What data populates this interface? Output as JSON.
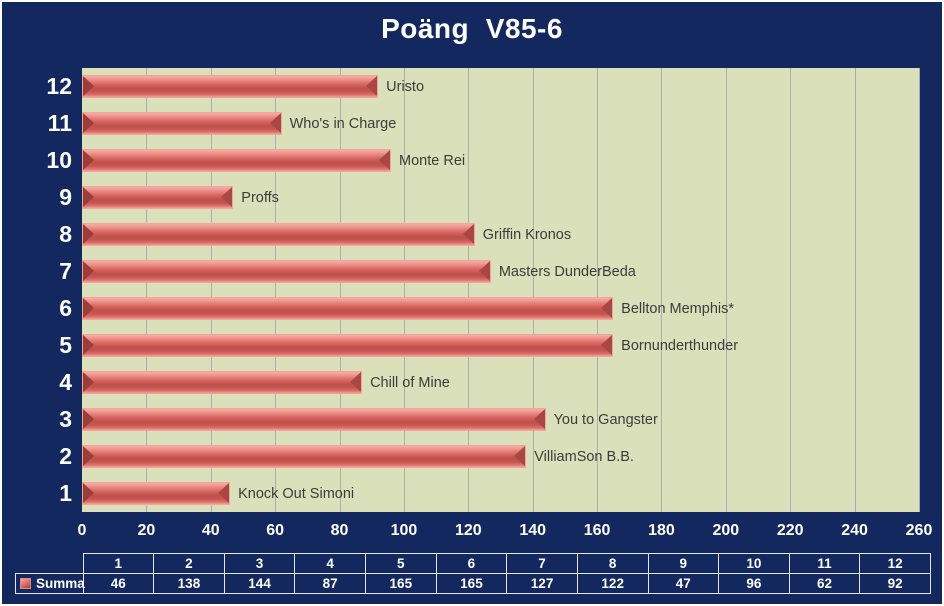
{
  "title": "Poäng  V85-6",
  "chart_data": {
    "type": "bar",
    "orientation": "horizontal",
    "title": "Poäng  V85-6",
    "series_name": "Summa",
    "categories": [
      "1",
      "2",
      "3",
      "4",
      "5",
      "6",
      "7",
      "8",
      "9",
      "10",
      "11",
      "12"
    ],
    "values": [
      46,
      138,
      144,
      87,
      165,
      165,
      127,
      122,
      47,
      96,
      62,
      92
    ],
    "bar_labels": [
      "Knock Out Simoni",
      "VilliamSon B.B.",
      "You to Gangster",
      "Chill of Mine",
      "Bornunderthunder",
      "Bellton Memphis*",
      "Masters DunderBeda",
      "Griffin Kronos",
      "Proffs",
      "Monte Rei",
      "Who's in Charge",
      "Uristo"
    ],
    "display_order_top_to_bottom": [
      "12",
      "11",
      "10",
      "9",
      "8",
      "7",
      "6",
      "5",
      "4",
      "3",
      "2",
      "1"
    ],
    "xlim": [
      0,
      260
    ],
    "xticks": [
      0,
      20,
      40,
      60,
      80,
      100,
      120,
      140,
      160,
      180,
      200,
      220,
      240,
      260
    ],
    "grid": "vertical",
    "legend_position": "bottom-table-row-header"
  },
  "table": {
    "row_header": "Summa",
    "legend_icon": "red-series-key",
    "columns": [
      "1",
      "2",
      "3",
      "4",
      "5",
      "6",
      "7",
      "8",
      "9",
      "10",
      "11",
      "12"
    ],
    "values": [
      "46",
      "138",
      "144",
      "87",
      "165",
      "165",
      "127",
      "122",
      "47",
      "96",
      "62",
      "92"
    ]
  },
  "colors": {
    "background": "#13285e",
    "plot_background": "#d9e0ba",
    "bar_fill": "#d95f5a",
    "bar_highlight": "#f6aca6",
    "bar_bevel_dark": "#9a3e3a",
    "gridline": "#a9aeb6",
    "axis_text": "#ffffff",
    "bar_label_text": "#3c3c3c",
    "table_border": "#e6e6e6"
  }
}
